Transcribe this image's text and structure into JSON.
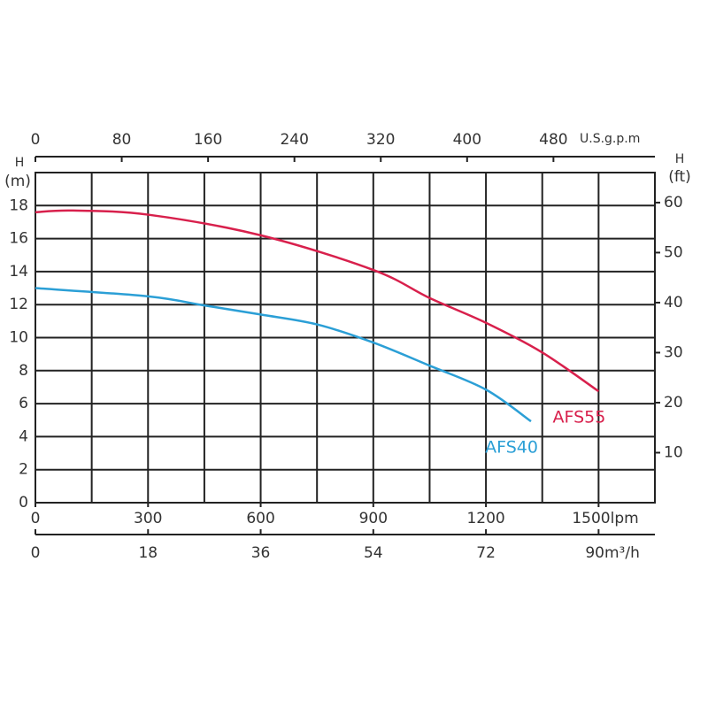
{
  "chart_data": {
    "type": "line",
    "ylabel": "H",
    "yunit": "(m)",
    "y2label": "H",
    "y2unit": "(ft)",
    "x2label": "U.S.g.p.m",
    "xlim": [
      0,
      1650
    ],
    "xticks": [
      0,
      300,
      600,
      900,
      1200,
      {
        "value": 1500,
        "label": "1500lpm"
      }
    ],
    "xgrid": [
      150,
      300,
      450,
      600,
      750,
      900,
      1050,
      1200,
      1350,
      1500
    ],
    "x2lim": [
      0,
      574
    ],
    "x2ticks": [
      0,
      80,
      160,
      240,
      320,
      400,
      480
    ],
    "x3lim": [
      0,
      99
    ],
    "x3ticks": [
      0,
      18,
      36,
      54,
      72,
      {
        "value": 90,
        "label": "90m³/h"
      }
    ],
    "ylim": [
      0,
      20
    ],
    "yticks": [
      0,
      2,
      4,
      6,
      8,
      10,
      12,
      14,
      16,
      18
    ],
    "y2lim": [
      0,
      66
    ],
    "y2ticks": [
      10,
      20,
      30,
      40,
      50,
      60
    ],
    "grid": true,
    "series": [
      {
        "name": "AFS55",
        "color": "#d8204c",
        "x": [
          0,
          100,
          300,
          600,
          900,
          1050,
          1200,
          1350,
          1500
        ],
        "values": [
          17.6,
          17.7,
          17.45,
          16.2,
          14.1,
          12.4,
          10.9,
          9.1,
          6.75
        ]
      },
      {
        "name": "AFS40",
        "color": "#2b9fd6",
        "x": [
          0,
          300,
          450,
          600,
          750,
          900,
          1050,
          1200,
          1320
        ],
        "values": [
          13.0,
          12.5,
          11.95,
          11.4,
          10.8,
          9.7,
          8.3,
          6.85,
          4.93
        ]
      }
    ]
  }
}
